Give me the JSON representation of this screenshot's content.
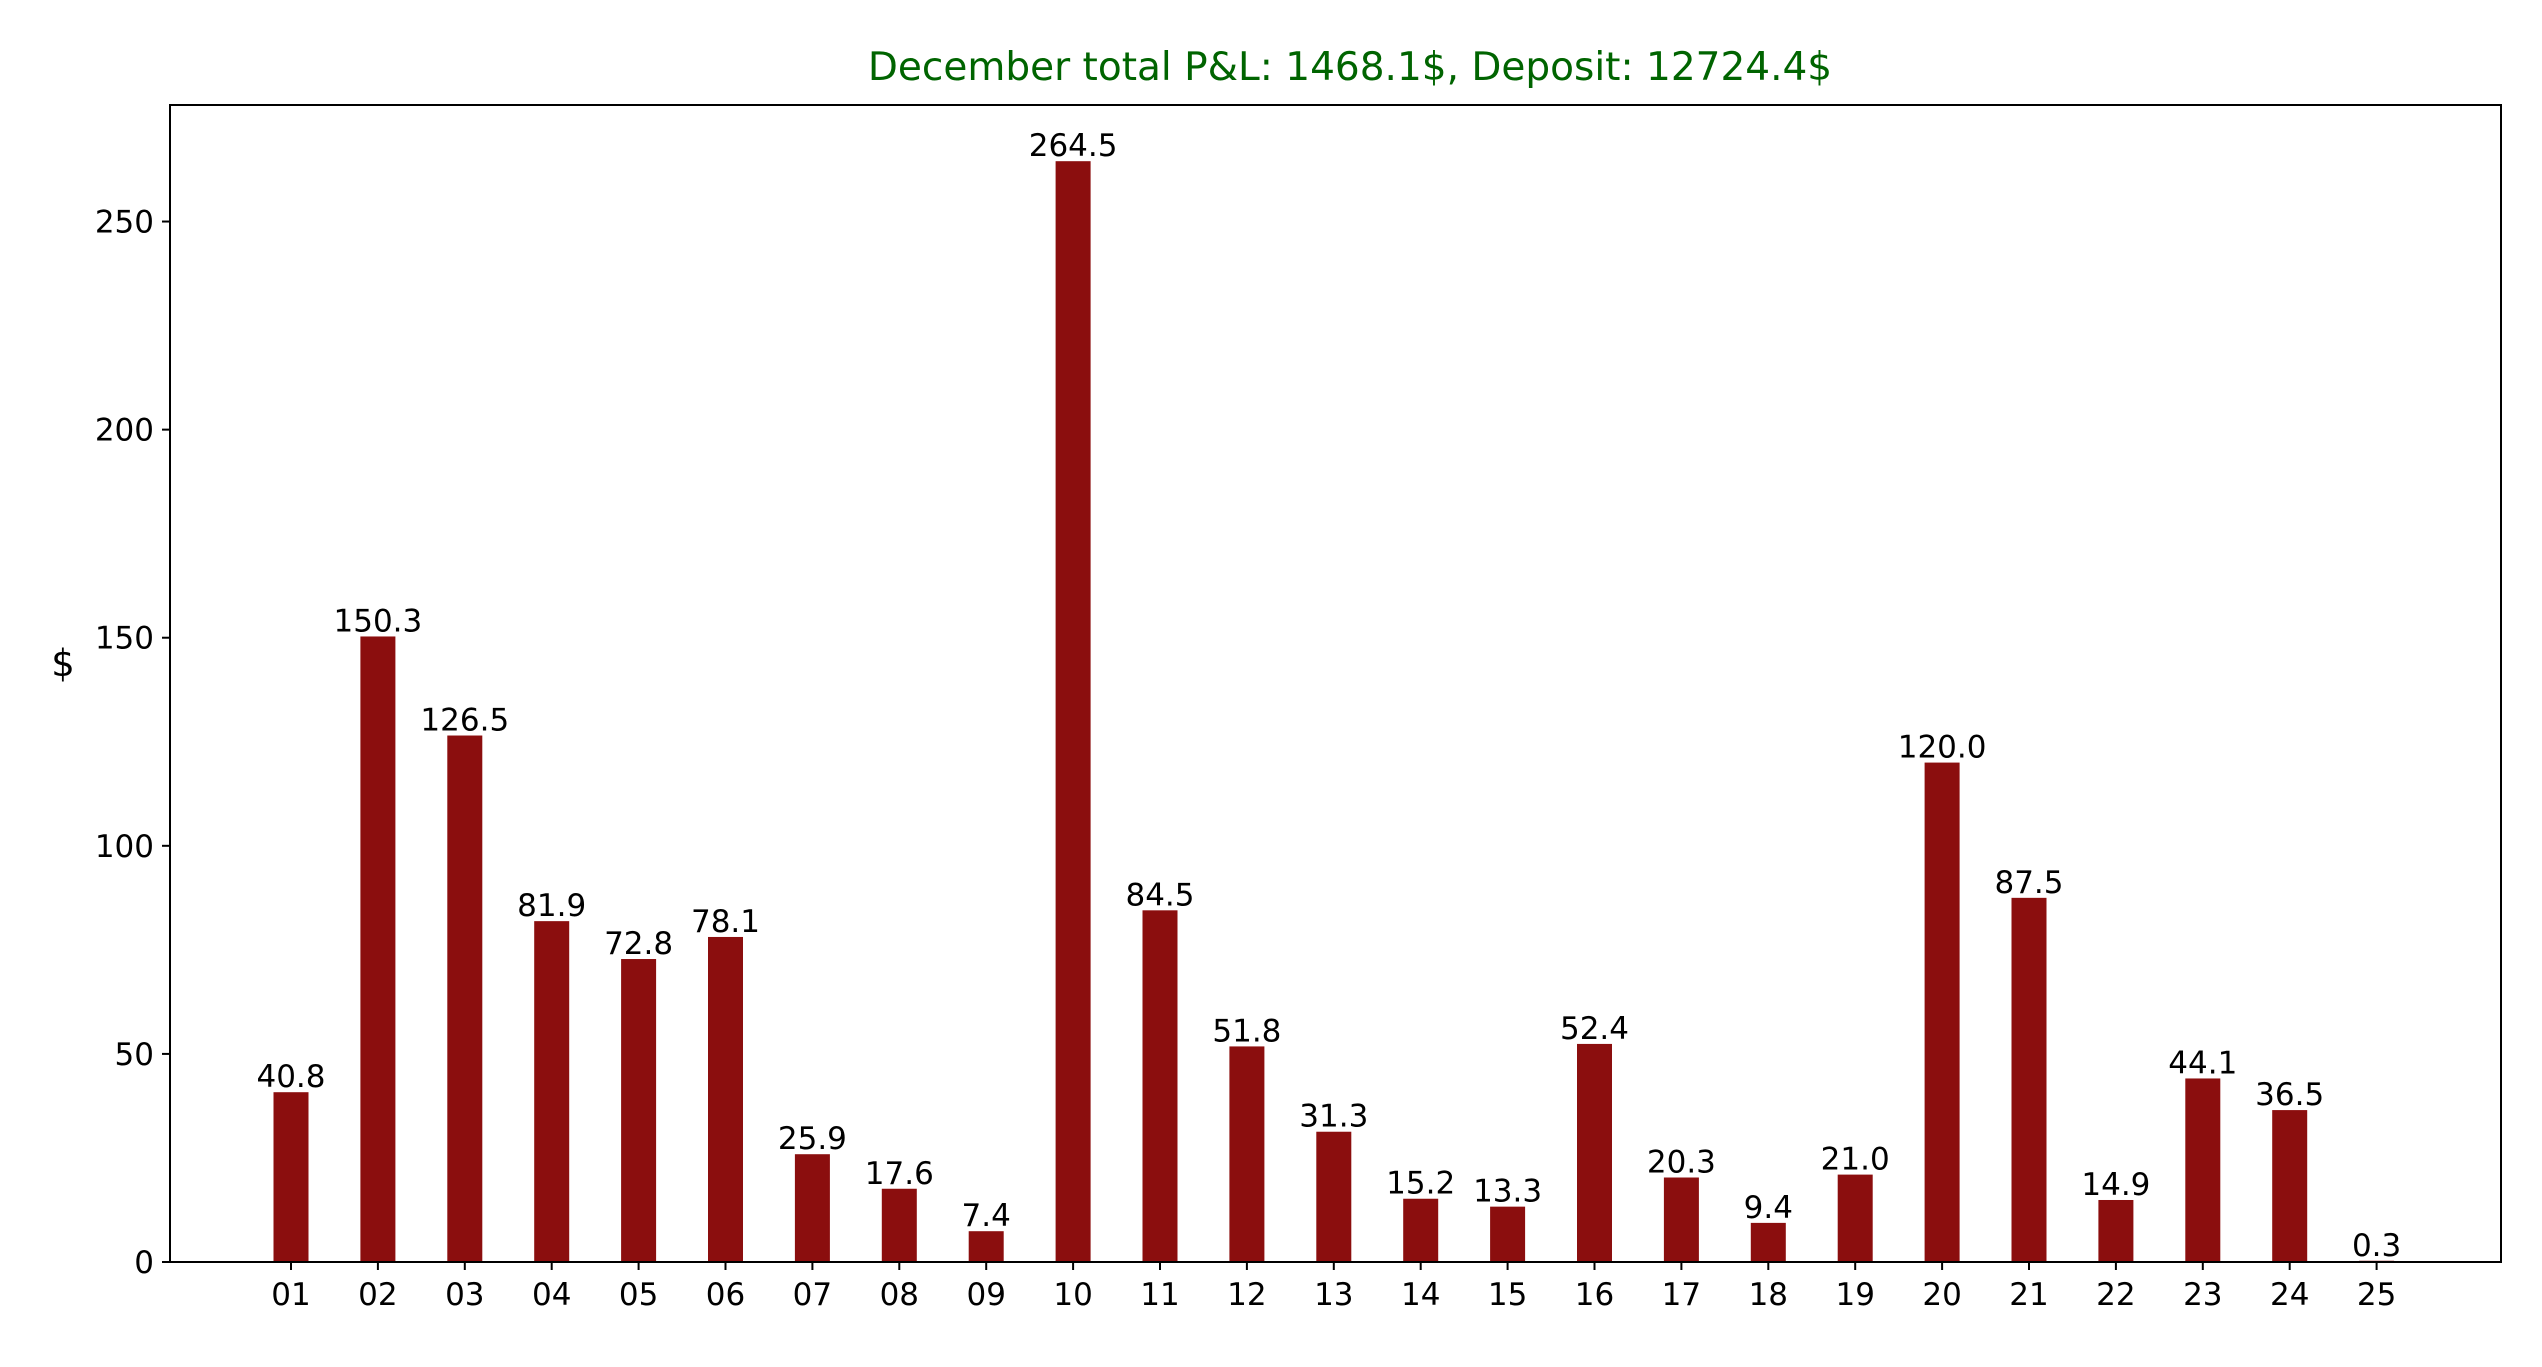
{
  "chart_data": {
    "type": "bar",
    "title": "December total P&L: 1468.1$, Deposit: 12724.4$",
    "xlabel": "",
    "ylabel": "$",
    "categories": [
      "01",
      "02",
      "03",
      "04",
      "05",
      "06",
      "07",
      "08",
      "09",
      "10",
      "11",
      "12",
      "13",
      "14",
      "15",
      "16",
      "17",
      "18",
      "19",
      "20",
      "21",
      "22",
      "23",
      "24",
      "25"
    ],
    "values": [
      40.8,
      150.3,
      126.5,
      81.9,
      72.8,
      78.1,
      25.9,
      17.6,
      7.4,
      264.5,
      84.5,
      51.8,
      31.3,
      15.2,
      13.3,
      52.4,
      20.3,
      9.4,
      21.0,
      120.0,
      87.5,
      14.9,
      44.1,
      36.5,
      0.3
    ],
    "value_labels": [
      "40.8",
      "150.3",
      "126.5",
      "81.9",
      "72.8",
      "78.1",
      "25.9",
      "17.6",
      "7.4",
      "264.5",
      "84.5",
      "51.8",
      "31.3",
      "15.2",
      "13.3",
      "52.4",
      "20.3",
      "9.4",
      "21.0",
      "120.0",
      "87.5",
      "14.9",
      "44.1",
      "36.5",
      "0.3"
    ],
    "ylim": [
      0,
      278
    ],
    "yticks": [
      0,
      50,
      100,
      150,
      200,
      250
    ],
    "grid": false,
    "legend": null
  },
  "colors": {
    "bar": "#8b0e0e",
    "title": "#006400",
    "axis": "#000000",
    "background": "#ffffff"
  }
}
